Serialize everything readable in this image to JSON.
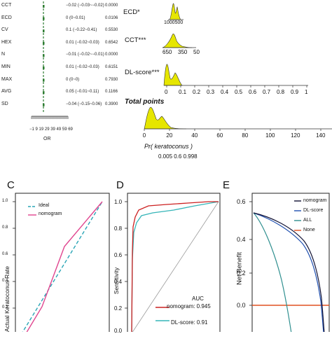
{
  "forest": {
    "rows": [
      {
        "label": "CCT",
        "ci": "−0.02 (−0.03~−0.02)",
        "p": "0.0000"
      },
      {
        "label": "ECD",
        "ci": "0 (0~0.01)",
        "p": "0.0106"
      },
      {
        "label": "CV",
        "ci": "0.1 (−0.22~0.41)",
        "p": "0.5530"
      },
      {
        "label": "HEX",
        "ci": "0.01 (−0.02~0.03)",
        "p": "0.6542"
      },
      {
        "label": "N",
        "ci": "−0.01 (−0.02~−0.01)",
        "p": "0.0000"
      },
      {
        "label": "MIN",
        "ci": "0.01 (−0.02~0.03)",
        "p": "0.6151"
      },
      {
        "label": "MAX",
        "ci": "0 (0~0)",
        "p": "0.7930"
      },
      {
        "label": "AVG",
        "ci": "0.05 (−0.01~0.11)",
        "p": "0.1166"
      },
      {
        "label": "SD",
        "ci": "−0.04 (−0.15~0.06)",
        "p": "0.3900"
      }
    ],
    "x_ticks": "−1 9 19 29 39 49 59 69",
    "x_label": "OR"
  },
  "nomogram": {
    "ecd_label": "ECD*",
    "ecd_ticks": "1000500",
    "cct_label": "CCT***",
    "cct_ticks": [
      "650",
      "350",
      "50"
    ],
    "dl_label": "DL-score***",
    "dl_ticks": [
      "0",
      "0.1",
      "0.2",
      "0.3",
      "0.4",
      "0.5",
      "0.6",
      "0.7",
      "0.8",
      "0.9",
      "1"
    ],
    "total_label": "Total points",
    "total_ticks": [
      "0",
      "20",
      "40",
      "60",
      "80",
      "100",
      "120",
      "140"
    ],
    "pr_label": "Pr( keratoconus )",
    "pr_ticks": "0.005 0.6 0.998"
  },
  "panel_c": {
    "letter": "C",
    "ylabel": "Actual Keratoconus Rate",
    "y_ticks": [
      "1.0",
      "0.8",
      "0.6",
      "0.4",
      "0.2"
    ],
    "legend": [
      {
        "name": "Ideal",
        "color": "#2aa5b6"
      },
      {
        "name": "nomogram",
        "color": "#e0458f"
      }
    ]
  },
  "panel_d": {
    "letter": "D",
    "ylabel": "Sensitivity",
    "y_ticks": [
      "1.0",
      "0.8",
      "0.6",
      "0.4",
      "0.2",
      "0.0"
    ],
    "auc_title": "AUC",
    "auc_rows": [
      {
        "label": "nomogram: 0.945",
        "color": "#cc2020"
      },
      {
        "label": "DL-score: 0.91",
        "color": "#35b5b8"
      }
    ]
  },
  "panel_e": {
    "letter": "E",
    "ylabel": "Net Benefit",
    "y_ticks": [
      "0.6",
      "0.4",
      "0.2",
      "0.0"
    ],
    "legend": [
      {
        "name": "nomogram",
        "color": "#111133"
      },
      {
        "name": "DL-score",
        "color": "#2050b0"
      },
      {
        "name": "ALL",
        "color": "#2f8f8f"
      },
      {
        "name": "None",
        "color": "#e05020"
      }
    ]
  },
  "colors": {
    "density_fill": "#e6e600",
    "forest_marker": "#2e7d32"
  }
}
